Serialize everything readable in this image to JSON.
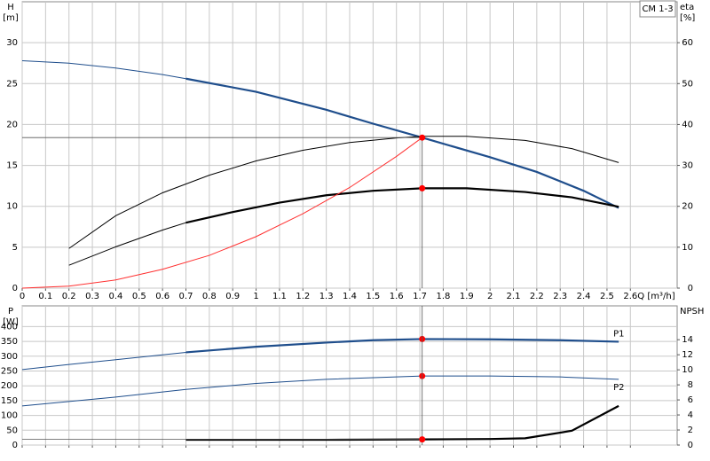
{
  "chart_data": [
    {
      "type": "line",
      "legend_box": "CM 1-3",
      "xlabel": "Q [m³/h]",
      "ylabel": "H",
      "yunit": "[m]",
      "y2label": "eta",
      "y2unit": "[%]",
      "xlim": [
        0,
        2.8
      ],
      "ylim": [
        0,
        35
      ],
      "y2lim": [
        0,
        70
      ],
      "xticks": [
        0,
        0.1,
        0.2,
        0.3,
        0.4,
        0.5,
        0.6,
        0.7,
        0.8,
        0.9,
        1.0,
        1.1,
        1.2,
        1.3,
        1.4,
        1.5,
        1.6,
        1.7,
        1.8,
        1.9,
        2.0,
        2.1,
        2.2,
        2.3,
        2.4,
        2.5,
        2.6
      ],
      "xtick_labels": true,
      "yticks": [
        0,
        5,
        10,
        15,
        20,
        25,
        30
      ],
      "y2ticks": [
        0,
        10,
        20,
        30,
        40,
        50,
        60
      ],
      "grid": true,
      "series": [
        {
          "color": "#1f4e8c",
          "width": 1,
          "x": [
            0,
            0.2,
            0.4,
            0.6,
            0.7
          ],
          "values": [
            27.8,
            27.5,
            26.9,
            26.1,
            25.6
          ]
        },
        {
          "color": "#1f4e8c",
          "width": 2.2,
          "x": [
            0.7,
            1.0,
            1.3,
            1.5,
            1.71,
            2.0,
            2.2,
            2.4,
            2.55
          ],
          "values": [
            25.6,
            24.0,
            21.8,
            20.1,
            18.4,
            16.0,
            14.2,
            11.9,
            9.8
          ]
        },
        {
          "color": "#000000",
          "width": 1,
          "axis": "y2",
          "x": [
            0.2,
            0.4,
            0.6,
            0.8,
            1.0,
            1.2,
            1.4,
            1.6,
            1.71,
            1.9,
            2.15,
            2.35,
            2.55
          ],
          "values": [
            9.7,
            17.7,
            23.3,
            27.6,
            31.1,
            33.7,
            35.6,
            36.7,
            37.1,
            37.1,
            36.1,
            34.1,
            30.7
          ]
        },
        {
          "color": "#000000",
          "width": 1,
          "axis": "y2",
          "x": [
            0.2,
            0.4,
            0.6,
            0.7
          ],
          "values": [
            5.6,
            10.1,
            14.2,
            16.0
          ]
        },
        {
          "color": "#000000",
          "width": 2.2,
          "axis": "y2",
          "x": [
            0.7,
            0.9,
            1.1,
            1.3,
            1.5,
            1.71,
            1.9,
            2.15,
            2.35,
            2.55
          ],
          "values": [
            16.0,
            18.6,
            20.9,
            22.7,
            23.8,
            24.4,
            24.4,
            23.5,
            22.2,
            19.9
          ]
        },
        {
          "color": "#ff3030",
          "width": 1,
          "x": [
            0,
            0.2,
            0.4,
            0.6,
            0.8,
            1.0,
            1.2,
            1.4,
            1.6,
            1.71
          ],
          "values": [
            0,
            0.25,
            1.0,
            2.3,
            4.0,
            6.3,
            9.1,
            12.3,
            16.1,
            18.4
          ]
        },
        {
          "color": "#ff0000",
          "marker": true,
          "guide": true,
          "x": [
            1.71
          ],
          "values": [
            18.4
          ]
        },
        {
          "color": "#ff0000",
          "marker": true,
          "axis": "y2",
          "x": [
            1.71
          ],
          "values": [
            24.4
          ]
        }
      ]
    },
    {
      "type": "line",
      "ylabel": "P",
      "yunit": "[W]",
      "y2label": "NPSH",
      "xlim": [
        0,
        2.8
      ],
      "ylim": [
        0,
        470
      ],
      "y2lim": [
        0,
        18.5
      ],
      "xticks": [
        0,
        0.1,
        0.2,
        0.3,
        0.4,
        0.5,
        0.6,
        0.7,
        0.8,
        0.9,
        1.0,
        1.1,
        1.2,
        1.3,
        1.4,
        1.5,
        1.6,
        1.7,
        1.8,
        1.9,
        2.0,
        2.1,
        2.2,
        2.3,
        2.4,
        2.5,
        2.6
      ],
      "xtick_labels": false,
      "yticks": [
        0,
        50,
        100,
        150,
        200,
        250,
        300,
        350,
        400
      ],
      "y2ticks": [
        0,
        2,
        4,
        6,
        8,
        10,
        12,
        14
      ],
      "grid": true,
      "series": [
        {
          "color": "#1f4e8c",
          "width": 1,
          "x": [
            0,
            0.2,
            0.4,
            0.7
          ],
          "values": [
            255,
            272,
            288,
            313
          ]
        },
        {
          "name": "P1",
          "color": "#1f4e8c",
          "width": 2.2,
          "x": [
            0.7,
            1.0,
            1.3,
            1.5,
            1.71,
            2.0,
            2.3,
            2.55
          ],
          "values": [
            313,
            332,
            346,
            354,
            358,
            357,
            354,
            349
          ]
        },
        {
          "name": "P2",
          "color": "#1f4e8c",
          "width": 1,
          "x": [
            0,
            0.4,
            0.7,
            1.0,
            1.3,
            1.71,
            2.0,
            2.3,
            2.55
          ],
          "values": [
            132,
            162,
            188,
            208,
            222,
            233,
            233,
            230,
            222
          ]
        },
        {
          "color": "#000000",
          "width": 2.2,
          "axis": "y2",
          "x": [
            0.7,
            1.0,
            1.3,
            1.71,
            2.0,
            2.15,
            2.35,
            2.55
          ],
          "values": [
            0.7,
            0.7,
            0.7,
            0.75,
            0.8,
            0.9,
            1.9,
            5.2
          ]
        },
        {
          "color": "#ff0000",
          "marker": true,
          "x": [
            1.71
          ],
          "values": [
            358
          ]
        },
        {
          "color": "#ff0000",
          "marker": true,
          "x": [
            1.71
          ],
          "values": [
            233
          ]
        },
        {
          "color": "#ff0000",
          "marker": true,
          "guide": true,
          "axis": "y2",
          "x": [
            1.71
          ],
          "values": [
            0.75
          ]
        }
      ]
    }
  ]
}
